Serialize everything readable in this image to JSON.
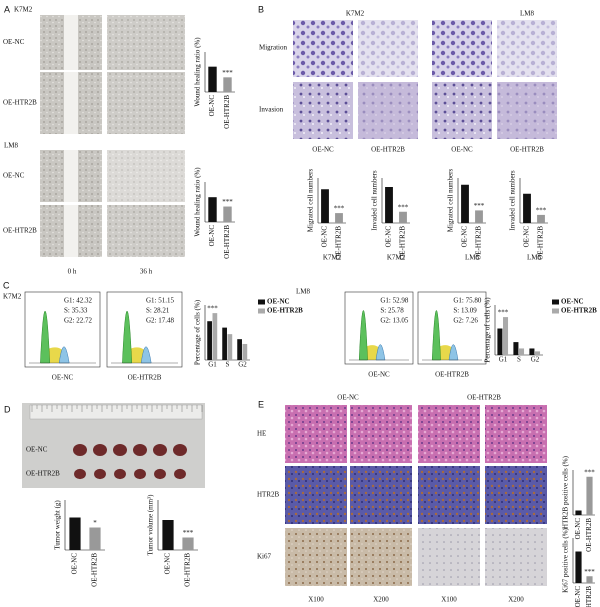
{
  "panels": {
    "A": {
      "label": "A",
      "cell_line_1": "K7M2",
      "cell_line_2": "LM8",
      "rows": [
        "OE-NC",
        "OE-HTR2B",
        "OE-NC",
        "OE-HTR2B"
      ],
      "times": [
        "0 h",
        "36 h"
      ]
    },
    "B": {
      "label": "B",
      "cell_lines": [
        "K7M2",
        "LM8"
      ],
      "rows": [
        "Migration",
        "Invasion"
      ],
      "groups": [
        "OE-NC",
        "OE-HTR2B",
        "OE-NC",
        "OE-HTR2B"
      ],
      "chart_captions": [
        "K7M2",
        "K7M2",
        "LM8",
        "LM8"
      ]
    },
    "C": {
      "label": "C",
      "left": {
        "cell_line": "K7M2",
        "plots": [
          {
            "name": "OE-NC",
            "stats": [
              "G1: 42.32",
              "S: 35.33",
              "G2: 22.72"
            ]
          },
          {
            "name": "OE-HTR2B",
            "stats": [
              "G1: 51.15",
              "S: 28.21",
              "G2: 17.48"
            ]
          }
        ]
      },
      "right": {
        "cell_line": "LM8",
        "plots": [
          {
            "name": "OE-NC",
            "stats": [
              "G1: 52.98",
              "S: 25.78",
              "G2: 13.05"
            ]
          },
          {
            "name": "OE-HTR2B",
            "stats": [
              "G1: 75.80",
              "S: 13.09",
              "G2: 7.26"
            ]
          }
        ]
      }
    },
    "D": {
      "label": "D",
      "rows": [
        "OE-NC",
        "OE-HTR2B"
      ]
    },
    "E": {
      "label": "E",
      "groups": [
        "OE-NC",
        "OE-HTR2B"
      ],
      "rows": [
        "HE",
        "HTR2B",
        "Ki67"
      ],
      "magnifications": [
        "X100",
        "X200",
        "X100",
        "X200"
      ]
    }
  },
  "chart_data": [
    {
      "type": "bar",
      "y_label": "Wound healing ratio (%)",
      "categories": [
        "OE-NC",
        "OE-HTR2B"
      ],
      "values": [
        95,
        55
      ],
      "colors": [
        "#111111",
        "#999999"
      ],
      "ylim": [
        0,
        150
      ],
      "annotation": "***"
    },
    {
      "type": "bar",
      "y_label": "Wound healing ratio (%)",
      "categories": [
        "OE-NC",
        "OE-HTR2B"
      ],
      "values": [
        93,
        58
      ],
      "colors": [
        "#111111",
        "#999999"
      ],
      "ylim": [
        0,
        150
      ],
      "annotation": "***"
    },
    {
      "type": "bar",
      "y_label": "Migrated cell numbers",
      "categories": [
        "OE-NC",
        "OE-HTR2B"
      ],
      "values": [
        75,
        22
      ],
      "colors": [
        "#111111",
        "#999999"
      ],
      "ylim": [
        0,
        100
      ],
      "annotation": "***"
    },
    {
      "type": "bar",
      "y_label": "Invaded cell numbers",
      "categories": [
        "OE-NC",
        "OE-HTR2B"
      ],
      "values": [
        80,
        25
      ],
      "colors": [
        "#111111",
        "#999999"
      ],
      "ylim": [
        0,
        100
      ],
      "annotation": "***"
    },
    {
      "type": "bar",
      "y_label": "Migrated cell numbers",
      "categories": [
        "OE-NC",
        "OE-HTR2B"
      ],
      "values": [
        85,
        28
      ],
      "colors": [
        "#111111",
        "#999999"
      ],
      "ylim": [
        0,
        100
      ],
      "annotation": "***"
    },
    {
      "type": "bar",
      "y_label": "Invaded cell numbers",
      "categories": [
        "OE-NC",
        "OE-HTR2B"
      ],
      "values": [
        65,
        18
      ],
      "colors": [
        "#111111",
        "#999999"
      ],
      "ylim": [
        0,
        100
      ],
      "annotation": "***"
    },
    {
      "type": "grouped",
      "y_label": "Percentage of cells (%)",
      "categories": [
        "G1",
        "S",
        "G2"
      ],
      "series": [
        {
          "name": "OE-NC",
          "color": "#111111",
          "values": [
            42.32,
            35.33,
            22.72
          ]
        },
        {
          "name": "OE-HTR2B",
          "color": "#aaaaaa",
          "values": [
            51.15,
            28.21,
            17.48
          ]
        }
      ],
      "ylim": [
        0,
        60
      ],
      "annotation": "***"
    },
    {
      "type": "grouped",
      "y_label": "Percentage of cells (%)",
      "categories": [
        "G1",
        "S",
        "G2"
      ],
      "series": [
        {
          "name": "OE-NC",
          "color": "#111111",
          "values": [
            52.98,
            25.78,
            13.05
          ]
        },
        {
          "name": "OE-HTR2B",
          "color": "#aaaaaa",
          "values": [
            75.8,
            13.09,
            7.26
          ]
        }
      ],
      "ylim": [
        0,
        100
      ],
      "annotation": "***"
    },
    {
      "type": "bar",
      "y_label": "Tumor weight (g)",
      "categories": [
        "OE-NC",
        "OE-HTR2B"
      ],
      "values": [
        1.3,
        0.9
      ],
      "colors": [
        "#111111",
        "#999999"
      ],
      "ylim": [
        0,
        2
      ],
      "annotation": "*"
    },
    {
      "type": "bar",
      "y_label": "Tumor volume (mm³)",
      "categories": [
        "OE-NC",
        "OE-HTR2B"
      ],
      "values": [
        1200,
        500
      ],
      "colors": [
        "#111111",
        "#999999"
      ],
      "ylim": [
        0,
        2000
      ],
      "annotation": "***"
    },
    {
      "type": "bar",
      "y_label": "HTR2B positive cells (%)",
      "categories": [
        "OE-NC",
        "OE-HTR2B"
      ],
      "values": [
        10,
        85
      ],
      "colors": [
        "#111111",
        "#999999"
      ],
      "ylim": [
        0,
        100
      ],
      "annotation": "***"
    },
    {
      "type": "bar",
      "y_label": "Ki67 positive cells (%)",
      "categories": [
        "OE-NC",
        "OE-HTR2B"
      ],
      "values": [
        70,
        15
      ],
      "colors": [
        "#111111",
        "#999999"
      ],
      "ylim": [
        0,
        100
      ],
      "annotation": "***"
    }
  ]
}
